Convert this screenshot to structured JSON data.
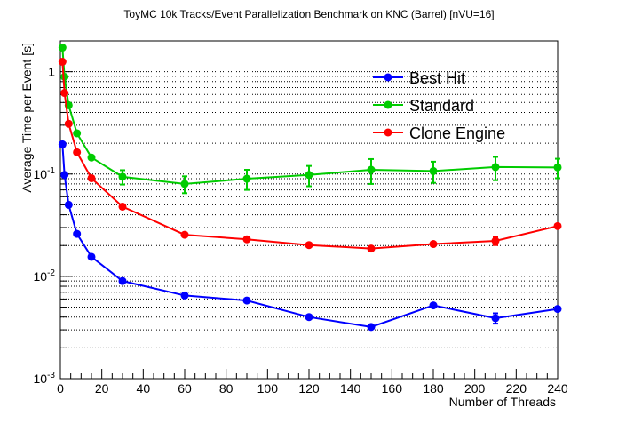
{
  "chart_data": {
    "type": "line",
    "title": "ToyMC 10k Tracks/Event Parallelization Benchmark on KNC (Barrel) [nVU=16]",
    "xlabel": "Number of Threads",
    "ylabel": "Average Time per Event [s]",
    "xlim": [
      0,
      240
    ],
    "ylim": [
      0.001,
      2
    ],
    "yscale": "log",
    "grid": "horizontal-dotted",
    "legend_position": "top-right",
    "x_ticks": [
      "0",
      "20",
      "40",
      "60",
      "80",
      "100",
      "120",
      "140",
      "160",
      "180",
      "200",
      "220",
      "240"
    ],
    "y_ticks": [
      {
        "base": "10",
        "exp": "-3",
        "value": 0.001
      },
      {
        "base": "10",
        "exp": "-2",
        "value": 0.01
      },
      {
        "base": "10",
        "exp": "-1",
        "value": 0.1
      },
      {
        "base": "1",
        "exp": "",
        "value": 1
      }
    ],
    "series": [
      {
        "name": "Best Hit",
        "color": "#0000ff",
        "x": [
          1,
          2,
          4,
          8,
          15,
          30,
          60,
          90,
          120,
          150,
          180,
          210,
          240
        ],
        "y": [
          0.195,
          0.098,
          0.05,
          0.026,
          0.0155,
          0.009,
          0.0065,
          0.0058,
          0.004,
          0.0032,
          0.0052,
          0.0039,
          0.0048
        ],
        "err": [
          0.005,
          0.003,
          0.002,
          0.0008,
          0.0005,
          0.0003,
          0.0002,
          0.0002,
          0.00015,
          0.0001,
          0.0002,
          0.00045,
          0.0002
        ]
      },
      {
        "name": "Standard",
        "color": "#00cc00",
        "x": [
          1,
          2,
          4,
          8,
          15,
          30,
          60,
          90,
          120,
          150,
          180,
          210,
          240
        ],
        "y": [
          1.72,
          0.89,
          0.47,
          0.25,
          0.145,
          0.094,
          0.08,
          0.09,
          0.098,
          0.11,
          0.107,
          0.117,
          0.116
        ],
        "err": [
          0.12,
          0.05,
          0.03,
          0.015,
          0.01,
          0.015,
          0.015,
          0.02,
          0.022,
          0.03,
          0.025,
          0.03,
          0.025
        ]
      },
      {
        "name": "Clone Engine",
        "color": "#ff0000",
        "x": [
          1,
          2,
          4,
          8,
          15,
          30,
          60,
          90,
          120,
          150,
          180,
          210,
          240
        ],
        "y": [
          1.25,
          0.62,
          0.31,
          0.163,
          0.091,
          0.048,
          0.0255,
          0.023,
          0.0202,
          0.0187,
          0.0207,
          0.0222,
          0.031
        ],
        "err": [
          0.04,
          0.02,
          0.01,
          0.006,
          0.004,
          0.002,
          0.001,
          0.001,
          0.0008,
          0.0008,
          0.0015,
          0.002,
          0.0012
        ]
      }
    ]
  }
}
